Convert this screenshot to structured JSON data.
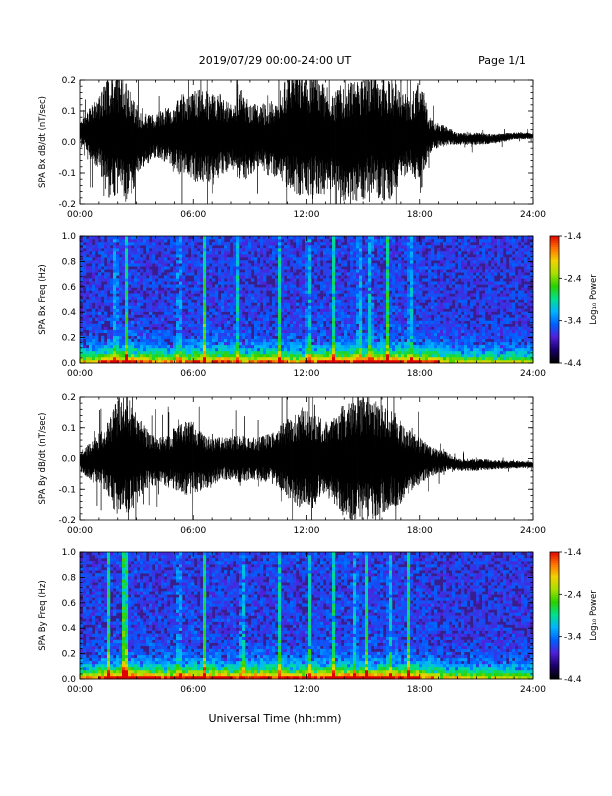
{
  "header": {
    "title": "2019/07/29  00:00-24:00 UT",
    "page_label": "Page 1/1"
  },
  "colors": {
    "background": "#ffffff",
    "trace": "#000000",
    "spectrogram_background": "#3a1d8c",
    "colorbar_stops": [
      "#000000",
      "#1a006b",
      "#4f20d8",
      "#0060ff",
      "#00b4ff",
      "#00e08c",
      "#2cd000",
      "#a8e000",
      "#f2d200",
      "#ff7000",
      "#e00000"
    ]
  },
  "chart_data": [
    {
      "type": "line",
      "title": "",
      "ylabel": "SPA Bx dB/dt (nT/sec)",
      "xlabel": "",
      "xlim_hours": [
        0,
        24
      ],
      "ylim": [
        -0.2,
        0.2
      ],
      "x_tick_labels": [
        "00:00",
        "06:00",
        "12:00",
        "18:00",
        "24:00"
      ],
      "y_tick_labels": [
        "-0.2",
        "-0.1",
        "0.0",
        "0.1",
        "0.2"
      ],
      "series": [
        {
          "hour_of_day": [
            0,
            0.5,
            1,
            1.5,
            2,
            2.25,
            2.5,
            3,
            3.5,
            4,
            4.5,
            5,
            5.5,
            6,
            6.5,
            7,
            7.5,
            8,
            8.5,
            9,
            9.5,
            10,
            10.5,
            11,
            11.5,
            12,
            12.5,
            13,
            13.5,
            14,
            14.5,
            15,
            15.5,
            16,
            16.5,
            17,
            17.5,
            18,
            18.5,
            19,
            19.5,
            20,
            21,
            22,
            23,
            24
          ],
          "center_nT_per_sec": [
            0.03,
            0.03,
            0.03,
            0.02,
            0.02,
            0.02,
            0.0,
            0.0,
            0.01,
            0.02,
            0.02,
            0.02,
            0.02,
            0.02,
            0.02,
            0.01,
            0.02,
            0.02,
            0.02,
            0.01,
            0.02,
            0.01,
            0.02,
            0.03,
            0.03,
            0.02,
            0.03,
            0.01,
            0.01,
            0.0,
            0.0,
            0.01,
            0.03,
            0.01,
            0.01,
            0.02,
            0.02,
            0.02,
            0.02,
            0.02,
            0.02,
            0.01,
            0.01,
            0.01,
            0.02,
            0.02
          ],
          "envelope_nT_per_sec": [
            0.03,
            0.08,
            0.12,
            0.2,
            0.2,
            0.2,
            0.2,
            0.13,
            0.09,
            0.07,
            0.09,
            0.11,
            0.14,
            0.15,
            0.15,
            0.15,
            0.14,
            0.1,
            0.16,
            0.12,
            0.1,
            0.12,
            0.14,
            0.18,
            0.2,
            0.2,
            0.2,
            0.18,
            0.15,
            0.2,
            0.2,
            0.2,
            0.2,
            0.2,
            0.2,
            0.15,
            0.12,
            0.2,
            0.06,
            0.04,
            0.03,
            0.02,
            0.02,
            0.015,
            0.012,
            0.01
          ]
        }
      ]
    },
    {
      "type": "heatmap",
      "title": "",
      "ylabel": "SPA Bx Freq (Hz)",
      "xlabel": "",
      "xlim_hours": [
        0,
        24
      ],
      "ylim": [
        0,
        1.0
      ],
      "x_tick_labels": [
        "00:00",
        "06:00",
        "12:00",
        "18:00",
        "24:00"
      ],
      "y_tick_labels": [
        "0.0",
        "0.2",
        "0.4",
        "0.6",
        "0.8",
        "1.0"
      ],
      "colorbar": {
        "label": "Log₁₀ Power",
        "range": [
          -4.4,
          -1.4
        ],
        "tick_labels": [
          "-1.4",
          "-2.4",
          "-3.4",
          "-4.4"
        ]
      },
      "activity_by_hour": [
        0.25,
        0.45,
        0.55,
        0.4,
        0.3,
        0.35,
        0.45,
        0.5,
        0.3,
        0.4,
        0.35,
        0.35,
        0.45,
        0.5,
        0.55,
        0.55,
        0.55,
        0.5,
        0.45,
        0.15,
        0.1,
        0.08,
        0.06,
        0.05
      ],
      "vertical_streak_hours": [
        1.9,
        2.45,
        5.25,
        6.6,
        8.3,
        10.6,
        12.1,
        13.4,
        14.8,
        15.4,
        16.3,
        17.5
      ]
    },
    {
      "type": "line",
      "title": "",
      "ylabel": "SPA By dB/dt (nT/sec)",
      "xlabel": "",
      "xlim_hours": [
        0,
        24
      ],
      "ylim": [
        -0.2,
        0.2
      ],
      "x_tick_labels": [
        "00:00",
        "06:00",
        "12:00",
        "18:00",
        "24:00"
      ],
      "y_tick_labels": [
        "-0.2",
        "-0.1",
        "0.0",
        "0.1",
        "0.2"
      ],
      "series": [
        {
          "hour_of_day": [
            0,
            0.5,
            1,
            1.5,
            2,
            2.25,
            2.5,
            3,
            3.5,
            4,
            4.5,
            5,
            5.5,
            6,
            6.5,
            7,
            7.5,
            8,
            8.5,
            9,
            9.5,
            10,
            10.5,
            11,
            11.5,
            12,
            12.5,
            13,
            13.5,
            14,
            14.5,
            15,
            15.5,
            16,
            16.5,
            17,
            17.5,
            18,
            18.5,
            19,
            19.5,
            20,
            21,
            22,
            23,
            24
          ],
          "center_nT_per_sec": [
            -0.01,
            -0.01,
            0.0,
            0.0,
            0.0,
            0.01,
            0.01,
            0.0,
            0.0,
            -0.01,
            -0.01,
            0.0,
            0.0,
            0.0,
            -0.01,
            -0.01,
            0.0,
            0.0,
            0.0,
            0.0,
            0.0,
            0.0,
            0.0,
            0.0,
            0.0,
            0.0,
            0.0,
            0.0,
            -0.01,
            -0.01,
            0.0,
            0.0,
            0.0,
            0.0,
            0.0,
            -0.01,
            -0.01,
            -0.01,
            -0.01,
            -0.01,
            -0.01,
            -0.02,
            -0.02,
            -0.02,
            -0.02,
            -0.02
          ],
          "envelope_nT_per_sec": [
            0.03,
            0.06,
            0.08,
            0.12,
            0.2,
            0.2,
            0.2,
            0.15,
            0.1,
            0.08,
            0.08,
            0.1,
            0.12,
            0.12,
            0.09,
            0.08,
            0.07,
            0.07,
            0.08,
            0.07,
            0.07,
            0.08,
            0.1,
            0.13,
            0.16,
            0.18,
            0.15,
            0.12,
            0.14,
            0.2,
            0.2,
            0.2,
            0.2,
            0.18,
            0.16,
            0.14,
            0.1,
            0.08,
            0.05,
            0.04,
            0.03,
            0.02,
            0.02,
            0.015,
            0.012,
            0.01
          ]
        }
      ]
    },
    {
      "type": "heatmap",
      "title": "",
      "ylabel": "SPA By Freq (Hz)",
      "xlabel": "Universal Time (hh:mm)",
      "xlim_hours": [
        0,
        24
      ],
      "ylim": [
        0,
        1.0
      ],
      "x_tick_labels": [
        "00:00",
        "06:00",
        "12:00",
        "18:00",
        "24:00"
      ],
      "y_tick_labels": [
        "0.0",
        "0.2",
        "0.4",
        "0.6",
        "0.8",
        "1.0"
      ],
      "colorbar": {
        "label": "Log₁₀ Power",
        "range": [
          -4.4,
          -1.4
        ],
        "tick_labels": [
          "-1.4",
          "-2.4",
          "-3.4",
          "-4.4"
        ]
      },
      "activity_by_hour": [
        0.3,
        0.5,
        0.65,
        0.55,
        0.45,
        0.5,
        0.55,
        0.55,
        0.45,
        0.5,
        0.45,
        0.45,
        0.5,
        0.6,
        0.6,
        0.6,
        0.6,
        0.55,
        0.35,
        0.15,
        0.12,
        0.1,
        0.08,
        0.06
      ],
      "vertical_streak_hours": [
        1.5,
        2.3,
        2.45,
        5.25,
        6.6,
        8.6,
        10.6,
        12.2,
        13.4,
        14.6,
        15.2,
        16.4,
        17.4
      ]
    }
  ]
}
